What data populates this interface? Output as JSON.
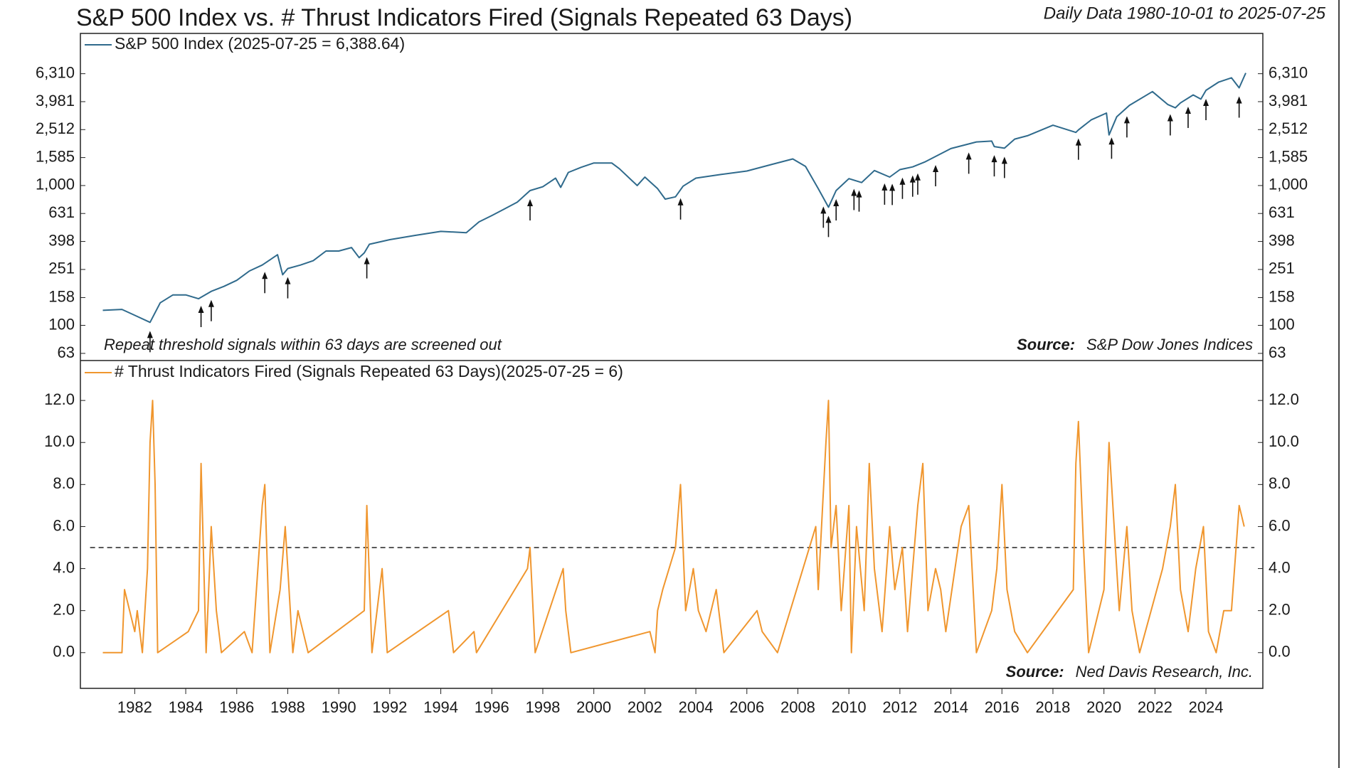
{
  "title": "S&P 500 Index vs. # Thrust Indicators Fired (Signals Repeated 63 Days)",
  "subtitle": "Daily Data 1980-10-01 to 2025-07-25",
  "chart_data": [
    {
      "type": "line",
      "log_scale": true,
      "annotation": "Repeat threshold signals within 63 days are screened out",
      "source_label": "Source:",
      "source": "S&P Dow Jones Indices",
      "xlim": [
        1979.87,
        2026.23
      ],
      "ylim": [
        56,
        12250
      ],
      "yticks": [
        63,
        100,
        158,
        251,
        398,
        631,
        {
          "value": 1000,
          "label": "1,000"
        },
        {
          "value": 1585,
          "label": "1,585"
        },
        {
          "value": 2512,
          "label": "2,512"
        },
        {
          "value": 3981,
          "label": "3,981"
        },
        {
          "value": 6310,
          "label": "6,310"
        }
      ],
      "series": [
        {
          "name": "S&P 500 Index (2025-07-25 = 6,388.64)",
          "color": "#2f6a8c",
          "x": [
            1980.75,
            1981.5,
            1982.0,
            1982.6,
            1983.0,
            1983.5,
            1984.0,
            1984.5,
            1985.0,
            1985.5,
            1986.0,
            1986.5,
            1987.0,
            1987.6,
            1987.8,
            1988.0,
            1988.5,
            1989.0,
            1989.5,
            1990.0,
            1990.5,
            1990.8,
            1991.0,
            1991.2,
            1992.0,
            1993.0,
            1994.0,
            1995.0,
            1995.5,
            1996.0,
            1996.5,
            1997.0,
            1997.5,
            1998.0,
            1998.5,
            1998.7,
            1999.0,
            1999.5,
            2000.0,
            2000.7,
            2001.0,
            2001.7,
            2002.0,
            2002.5,
            2002.8,
            2003.2,
            2003.5,
            2004.0,
            2005.0,
            2006.0,
            2007.0,
            2007.8,
            2008.3,
            2008.8,
            2009.2,
            2009.5,
            2010.0,
            2010.5,
            2011.0,
            2011.6,
            2012.0,
            2012.5,
            2013.0,
            2014.0,
            2015.0,
            2015.6,
            2015.7,
            2016.1,
            2016.5,
            2017.0,
            2018.0,
            2018.9,
            2019.0,
            2019.5,
            2020.1,
            2020.2,
            2020.5,
            2021.0,
            2021.9,
            2022.5,
            2022.8,
            2023.0,
            2023.5,
            2023.8,
            2024.0,
            2024.5,
            2025.0,
            2025.3,
            2025.56
          ],
          "values": [
            128,
            130,
            118,
            105,
            145,
            165,
            165,
            155,
            175,
            190,
            210,
            245,
            270,
            320,
            230,
            255,
            270,
            290,
            340,
            340,
            360,
            305,
            330,
            380,
            410,
            440,
            470,
            460,
            550,
            610,
            680,
            760,
            920,
            980,
            1130,
            970,
            1240,
            1350,
            1450,
            1450,
            1320,
            1000,
            1150,
            950,
            800,
            830,
            990,
            1130,
            1200,
            1270,
            1420,
            1550,
            1370,
            950,
            700,
            920,
            1120,
            1050,
            1280,
            1150,
            1300,
            1360,
            1480,
            1840,
            2050,
            2080,
            1900,
            1850,
            2150,
            2270,
            2700,
            2400,
            2500,
            2950,
            3300,
            2300,
            3100,
            3750,
            4700,
            3800,
            3600,
            3900,
            4450,
            4150,
            4800,
            5500,
            5900,
            5000,
            6388.64
          ]
        }
      ],
      "signals": [
        1982.6,
        1984.6,
        1985.0,
        1987.1,
        1988.0,
        1991.1,
        1997.5,
        2003.4,
        2009.0,
        2009.2,
        2009.5,
        2010.2,
        2010.4,
        2011.4,
        2011.7,
        2012.1,
        2012.5,
        2012.7,
        2013.4,
        2014.7,
        2015.7,
        2016.1,
        2019.0,
        2020.3,
        2020.9,
        2022.6,
        2023.3,
        2024.0,
        2025.3
      ]
    },
    {
      "type": "line",
      "log_scale": false,
      "source_label": "Source:",
      "source": "Ned Davis Research, Inc.",
      "threshold": 5,
      "xlim": [
        1979.87,
        2026.23
      ],
      "xticks": [
        1982,
        1984,
        1986,
        1988,
        1990,
        1992,
        1994,
        1996,
        1998,
        2000,
        2002,
        2004,
        2006,
        2008,
        2010,
        2012,
        2014,
        2016,
        2018,
        2020,
        2022,
        2024
      ],
      "ylim": [
        -1.7,
        13.9
      ],
      "yticks": [
        {
          "value": 0,
          "label": "0.0"
        },
        {
          "value": 2,
          "label": "2.0"
        },
        {
          "value": 4,
          "label": "4.0"
        },
        {
          "value": 6,
          "label": "6.0"
        },
        {
          "value": 8,
          "label": "8.0"
        },
        {
          "value": 10,
          "label": "10.0"
        },
        {
          "value": 12,
          "label": "12.0"
        }
      ],
      "series": [
        {
          "name": "# Thrust Indicators Fired (Signals Repeated 63 Days)(2025-07-25 = 6)",
          "color": "#f0962e",
          "x": [
            1980.75,
            1981.5,
            1981.6,
            1981.8,
            1982.0,
            1982.1,
            1982.3,
            1982.5,
            1982.6,
            1982.7,
            1982.8,
            1982.9,
            1984.1,
            1984.5,
            1984.6,
            1984.8,
            1985.0,
            1985.2,
            1985.4,
            1986.3,
            1986.6,
            1987.0,
            1987.1,
            1987.3,
            1987.7,
            1987.9,
            1988.0,
            1988.2,
            1988.4,
            1988.8,
            1991.0,
            1991.1,
            1991.3,
            1991.7,
            1991.9,
            1994.3,
            1994.5,
            1995.3,
            1995.4,
            1997.4,
            1997.5,
            1997.7,
            1998.8,
            1998.9,
            1999.1,
            2002.2,
            2002.4,
            2002.5,
            2002.7,
            2003.2,
            2003.4,
            2003.6,
            2003.9,
            2004.1,
            2004.4,
            2004.8,
            2005.1,
            2006.4,
            2006.6,
            2007.2,
            2008.7,
            2008.8,
            2009.1,
            2009.2,
            2009.3,
            2009.5,
            2009.7,
            2010.0,
            2010.1,
            2010.3,
            2010.6,
            2010.8,
            2011.0,
            2011.3,
            2011.6,
            2011.8,
            2012.1,
            2012.3,
            2012.7,
            2012.9,
            2013.1,
            2013.4,
            2013.6,
            2013.8,
            2014.4,
            2014.7,
            2015.0,
            2015.6,
            2015.8,
            2016.0,
            2016.2,
            2016.5,
            2017.0,
            2018.8,
            2018.9,
            2019.0,
            2019.2,
            2019.4,
            2020.0,
            2020.2,
            2020.4,
            2020.6,
            2020.9,
            2021.1,
            2021.4,
            2022.3,
            2022.6,
            2022.8,
            2023.0,
            2023.3,
            2023.6,
            2023.9,
            2024.1,
            2024.4,
            2024.7,
            2025.0,
            2025.3,
            2025.5
          ],
          "values": [
            0,
            0,
            3,
            2,
            1,
            2,
            0,
            4,
            10,
            12,
            8,
            0,
            1,
            2,
            9,
            0,
            6,
            2,
            0,
            1,
            0,
            7,
            8,
            0,
            3,
            6,
            4,
            0,
            2,
            0,
            2,
            7,
            0,
            4,
            0,
            2,
            0,
            1,
            0,
            4,
            5,
            0,
            4,
            2,
            0,
            1,
            0,
            2,
            3,
            5,
            8,
            2,
            4,
            2,
            1,
            3,
            0,
            2,
            1,
            0,
            6,
            3,
            10,
            12,
            5,
            7,
            2,
            7,
            0,
            6,
            2,
            9,
            4,
            1,
            6,
            3,
            5,
            1,
            7,
            9,
            2,
            4,
            3,
            1,
            6,
            7,
            0,
            2,
            4,
            8,
            3,
            1,
            0,
            3,
            9,
            11,
            5,
            0,
            3,
            10,
            6,
            2,
            6,
            2,
            0,
            4,
            6,
            8,
            3,
            1,
            4,
            6,
            1,
            0,
            2,
            2,
            7,
            6
          ]
        }
      ]
    }
  ]
}
